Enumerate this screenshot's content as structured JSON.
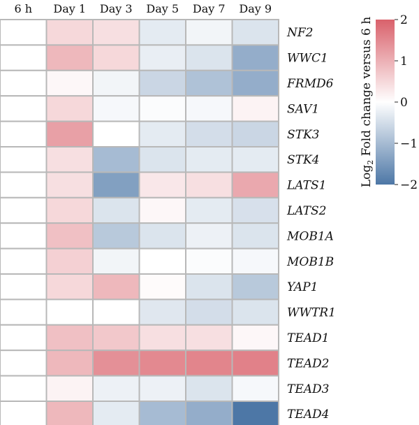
{
  "chart_data": {
    "type": "heatmap",
    "columns": [
      "6 h",
      "Day 1",
      "Day 3",
      "Day 5",
      "Day 7",
      "Day 9"
    ],
    "rows": [
      "NF2",
      "WWC1",
      "FRMD6",
      "SAV1",
      "STK3",
      "STK4",
      "LATS1",
      "LATS2",
      "MOB1A",
      "MOB1B",
      "YAP1",
      "WWTR1",
      "TEAD1",
      "TEAD2",
      "TEAD3",
      "TEAD4"
    ],
    "values": [
      [
        0,
        0.5,
        0.4,
        -0.3,
        -0.15,
        -0.4
      ],
      [
        0,
        0.9,
        0.5,
        -0.25,
        -0.4,
        -1.2
      ],
      [
        0,
        0.1,
        -0.15,
        -0.6,
        -0.9,
        -1.2
      ],
      [
        0,
        0.5,
        -0.1,
        -0.05,
        -0.1,
        0.15
      ],
      [
        0,
        1.2,
        0.0,
        -0.3,
        -0.5,
        -0.6
      ],
      [
        0,
        0.4,
        -1.0,
        -0.4,
        -0.3,
        -0.3
      ],
      [
        0,
        0.4,
        -1.4,
        0.3,
        0.4,
        1.1
      ],
      [
        0,
        0.5,
        -0.4,
        0.1,
        -0.3,
        -0.45
      ],
      [
        0,
        0.8,
        -0.8,
        -0.4,
        -0.2,
        -0.4
      ],
      [
        0,
        0.6,
        -0.15,
        0.0,
        -0.05,
        -0.1
      ],
      [
        0,
        0.5,
        0.9,
        0.05,
        -0.4,
        -0.8
      ],
      [
        0,
        0.0,
        0.0,
        -0.35,
        -0.5,
        -0.4
      ],
      [
        0,
        0.8,
        0.7,
        0.4,
        0.4,
        0.1
      ],
      [
        0,
        0.9,
        1.4,
        1.5,
        1.55,
        1.6
      ],
      [
        0,
        0.15,
        -0.2,
        -0.2,
        -0.4,
        -0.1
      ],
      [
        0,
        0.9,
        -0.3,
        -1.0,
        -1.2,
        -2.0
      ]
    ],
    "color_range": [
      -2,
      2
    ],
    "colors": {
      "low": "#4d77a6",
      "mid": "#ffffff",
      "high": "#d9616b",
      "grid": "#b8b8b8"
    },
    "legend": {
      "title_prefix": "Log",
      "title_sub": "2",
      "title_suffix": " Fold change versus 6 h",
      "ticks": [
        2,
        1,
        0,
        -1,
        -2
      ],
      "tick_labels": [
        "2",
        "1",
        "0",
        "−1",
        "−2"
      ],
      "placement": "right"
    }
  }
}
